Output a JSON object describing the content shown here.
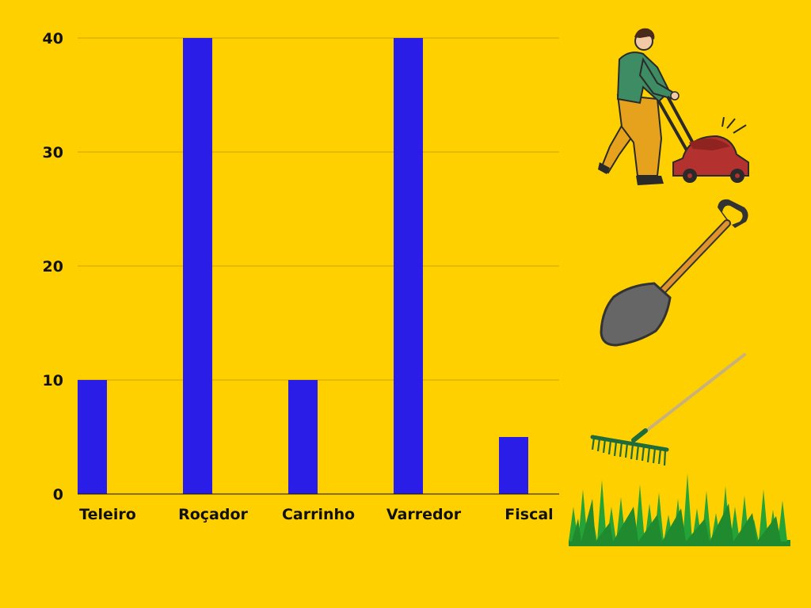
{
  "background_color": "#ffd000",
  "chart_data": {
    "type": "bar",
    "categories": [
      "Teleiro",
      "Roçador",
      "Carrinho",
      "Varredor",
      "Fiscal"
    ],
    "values": [
      10,
      40,
      10,
      40,
      5
    ],
    "title": "",
    "xlabel": "",
    "ylabel": "",
    "ylim": [
      0,
      40
    ],
    "yticks": [
      0,
      10,
      20,
      30,
      40
    ],
    "grid": true,
    "legend": "none",
    "bar_color": "#2b1de8",
    "grid_color": "#c9a500"
  },
  "illustrations": [
    {
      "icon": "lawn-mower-person-icon"
    },
    {
      "icon": "shovel-icon"
    },
    {
      "icon": "rake-icon"
    },
    {
      "icon": "grass-icon"
    }
  ]
}
